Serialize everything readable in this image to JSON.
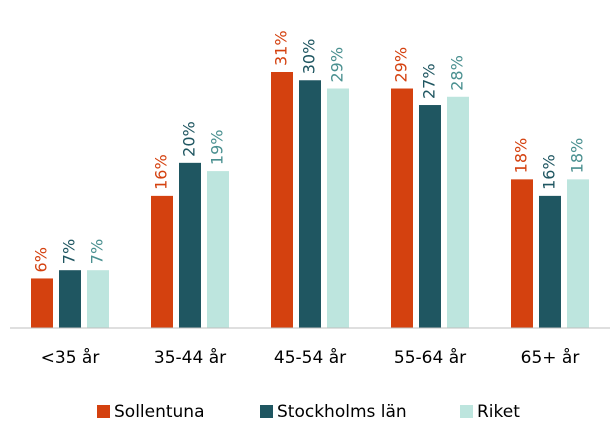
{
  "chart_data": {
    "type": "bar",
    "categories": [
      "<35 år",
      "35-44 år",
      "45-54 år",
      "55-64 år",
      "65+ år"
    ],
    "series": [
      {
        "name": "Sollentuna",
        "color": "#d4410f",
        "values": [
          6,
          16,
          31,
          29,
          18
        ],
        "value_labels": [
          "6%",
          "16%",
          "31%",
          "29%",
          "18%"
        ]
      },
      {
        "name": "Stockholms län",
        "color": "#1f5661",
        "values": [
          7,
          20,
          30,
          27,
          16
        ],
        "value_labels": [
          "7%",
          "20%",
          "30%",
          "27%",
          "16%"
        ]
      },
      {
        "name": "Riket",
        "color": "#bde5de",
        "values": [
          7,
          19,
          29,
          28,
          18
        ],
        "value_labels": [
          "7%",
          "19%",
          "29%",
          "28%",
          "18%"
        ]
      }
    ]
  }
}
